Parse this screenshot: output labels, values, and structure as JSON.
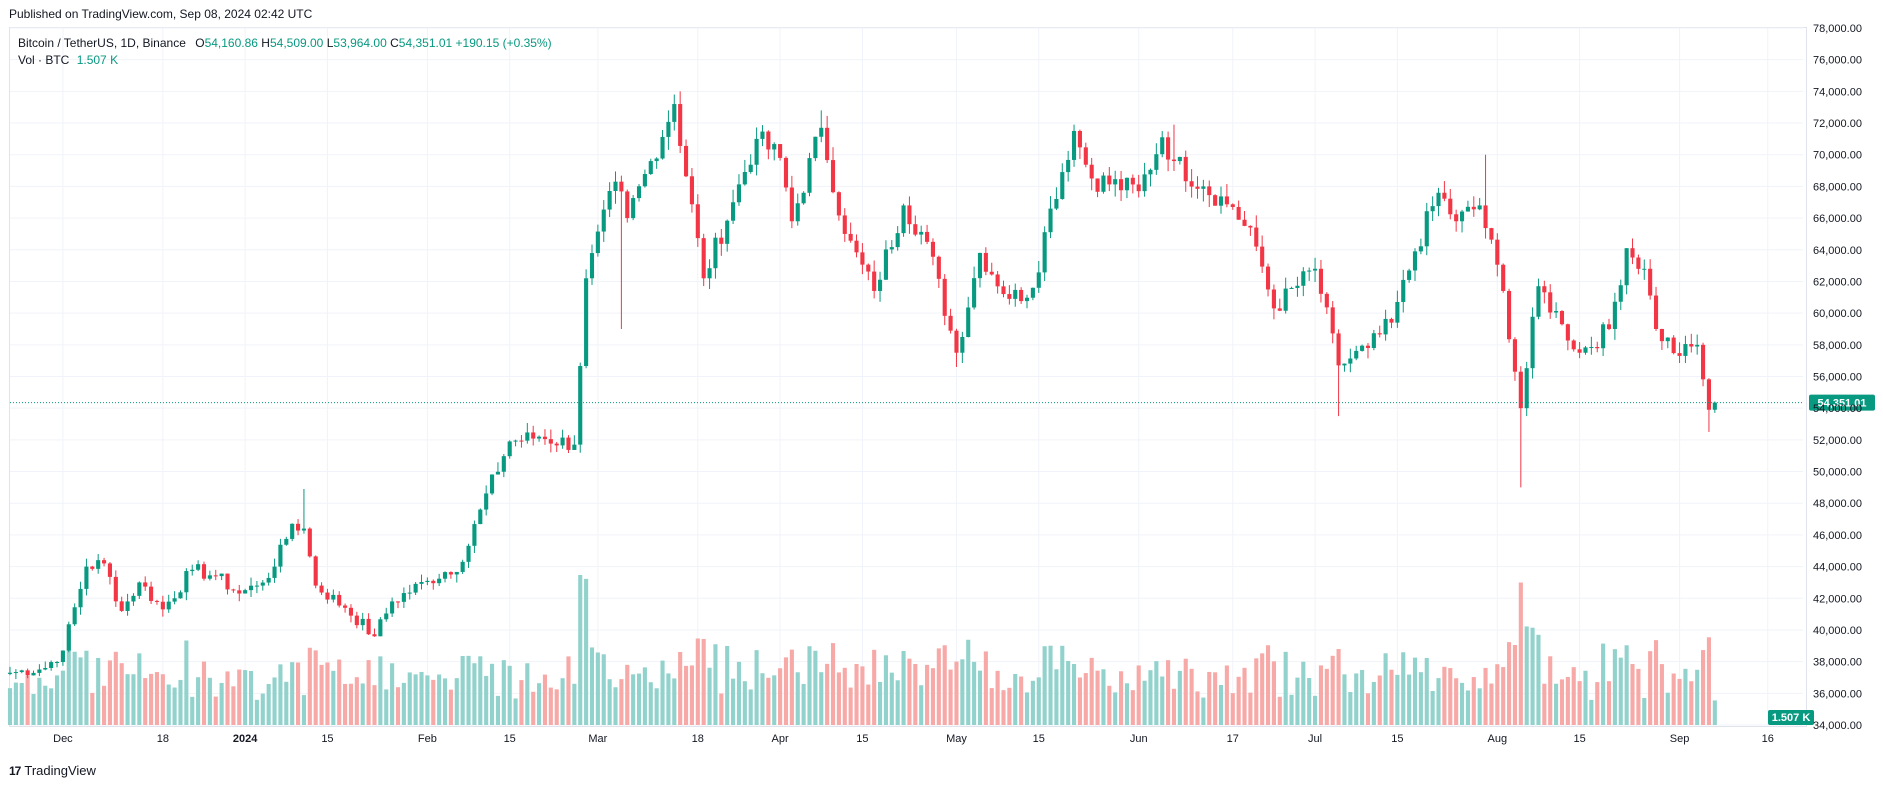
{
  "header": {
    "published": "Published on TradingView.com, Sep 08, 2024 02:42 UTC"
  },
  "legend": {
    "symbol": "Bitcoin / TetherUS, 1D, Binance",
    "o_label": "O",
    "o_value": "54,160.86",
    "h_label": "H",
    "h_value": "54,509.00",
    "l_label": "L",
    "l_value": "53,964.00",
    "c_label": "C",
    "c_value": "54,351.01",
    "change": "+190.15 (+0.35%)",
    "vol_label": "Vol · BTC",
    "vol_value": "1.507 K"
  },
  "brand": {
    "logo": "17",
    "name": "TradingView"
  },
  "colors": {
    "up": "#089981",
    "down": "#f23645",
    "up_vol": "#92d2cc",
    "down_vol": "#f7a9a7",
    "grid": "#f0f3fa",
    "axis_text": "#131722"
  },
  "chart_data": {
    "type": "candlestick",
    "symbol": "Bitcoin / TetherUS, 1D, Binance",
    "x_range": [
      "2023-11-22",
      "2024-09-22"
    ],
    "ylim": [
      34000,
      78000
    ],
    "yticks": [
      34000,
      36000,
      38000,
      40000,
      42000,
      44000,
      46000,
      48000,
      50000,
      52000,
      54000,
      56000,
      58000,
      60000,
      62000,
      64000,
      66000,
      68000,
      70000,
      72000,
      74000,
      76000,
      78000
    ],
    "ytick_labels": [
      "34,000.00",
      "36,000.00",
      "38,000.00",
      "40,000.00",
      "42,000.00",
      "44,000.00",
      "46,000.00",
      "48,000.00",
      "50,000.00",
      "52,000.00",
      "54,000.00",
      "56,000.00",
      "58,000.00",
      "60,000.00",
      "62,000.00",
      "64,000.00",
      "66,000.00",
      "68,000.00",
      "70,000.00",
      "72,000.00",
      "74,000.00",
      "76,000.00",
      "78,000.00"
    ],
    "xticks": [
      {
        "date": "2023-12-01",
        "label": "Dec",
        "bold": false
      },
      {
        "date": "2023-12-18",
        "label": "18",
        "bold": false
      },
      {
        "date": "2024-01-01",
        "label": "2024",
        "bold": true
      },
      {
        "date": "2024-01-15",
        "label": "15",
        "bold": false
      },
      {
        "date": "2024-02-01",
        "label": "Feb",
        "bold": false
      },
      {
        "date": "2024-02-15",
        "label": "15",
        "bold": false
      },
      {
        "date": "2024-03-01",
        "label": "Mar",
        "bold": false
      },
      {
        "date": "2024-03-18",
        "label": "18",
        "bold": false
      },
      {
        "date": "2024-04-01",
        "label": "Apr",
        "bold": false
      },
      {
        "date": "2024-04-15",
        "label": "15",
        "bold": false
      },
      {
        "date": "2024-05-01",
        "label": "May",
        "bold": false
      },
      {
        "date": "2024-05-15",
        "label": "15",
        "bold": false
      },
      {
        "date": "2024-06-01",
        "label": "Jun",
        "bold": false
      },
      {
        "date": "2024-06-17",
        "label": "17",
        "bold": false
      },
      {
        "date": "2024-07-01",
        "label": "Jul",
        "bold": false
      },
      {
        "date": "2024-07-15",
        "label": "15",
        "bold": false
      },
      {
        "date": "2024-08-01",
        "label": "Aug",
        "bold": false
      },
      {
        "date": "2024-08-15",
        "label": "15",
        "bold": false
      },
      {
        "date": "2024-09-01",
        "label": "Sep",
        "bold": false
      },
      {
        "date": "2024-09-16",
        "label": "16",
        "bold": false
      }
    ],
    "last_price": 54351.01,
    "last_price_label": "54,351.01",
    "last_volume_label": "1.507 K",
    "vol_max": 9200,
    "keypoints": [
      [
        "2023-11-22",
        37300
      ],
      [
        "2023-11-28",
        37600
      ],
      [
        "2023-12-01",
        38700
      ],
      [
        "2023-12-05",
        44000
      ],
      [
        "2023-12-08",
        44200
      ],
      [
        "2023-12-11",
        41200
      ],
      [
        "2023-12-14",
        43000
      ],
      [
        "2023-12-18",
        41300
      ],
      [
        "2023-12-23",
        43800
      ],
      [
        "2023-12-27",
        43400
      ],
      [
        "2023-12-31",
        42300
      ],
      [
        "2024-01-03",
        42800
      ],
      [
        "2024-01-06",
        44000
      ],
      [
        "2024-01-09",
        46700
      ],
      [
        "2024-01-11",
        46400
      ],
      [
        "2024-01-13",
        42800
      ],
      [
        "2024-01-18",
        41400
      ],
      [
        "2024-01-23",
        39600
      ],
      [
        "2024-01-26",
        41800
      ],
      [
        "2024-02-01",
        43100
      ],
      [
        "2024-02-07",
        44300
      ],
      [
        "2024-02-10",
        47600
      ],
      [
        "2024-02-15",
        51900
      ],
      [
        "2024-02-20",
        52200
      ],
      [
        "2024-02-26",
        51700
      ],
      [
        "2024-02-28",
        62200
      ],
      [
        "2024-03-04",
        68300
      ],
      [
        "2024-03-06",
        66000
      ],
      [
        "2024-03-10",
        69600
      ],
      [
        "2024-03-14",
        73200
      ],
      [
        "2024-03-19",
        62200
      ],
      [
        "2024-03-24",
        67000
      ],
      [
        "2024-03-28",
        71000
      ],
      [
        "2024-04-01",
        69800
      ],
      [
        "2024-04-03",
        65800
      ],
      [
        "2024-04-08",
        71700
      ],
      [
        "2024-04-12",
        65000
      ],
      [
        "2024-04-17",
        61400
      ],
      [
        "2024-04-22",
        66800
      ],
      [
        "2024-04-26",
        64500
      ],
      [
        "2024-05-01",
        57500
      ],
      [
        "2024-05-05",
        63800
      ],
      [
        "2024-05-10",
        60900
      ],
      [
        "2024-05-14",
        61600
      ],
      [
        "2024-05-17",
        66600
      ],
      [
        "2024-05-21",
        71500
      ],
      [
        "2024-05-24",
        68500
      ],
      [
        "2024-06-01",
        67700
      ],
      [
        "2024-06-05",
        71100
      ],
      [
        "2024-06-07",
        69600
      ],
      [
        "2024-06-12",
        68000
      ],
      [
        "2024-06-17",
        66700
      ],
      [
        "2024-06-21",
        64200
      ],
      [
        "2024-06-24",
        60300
      ],
      [
        "2024-07-01",
        62800
      ],
      [
        "2024-07-05",
        56700
      ],
      [
        "2024-07-10",
        57800
      ],
      [
        "2024-07-14",
        59400
      ],
      [
        "2024-07-18",
        63900
      ],
      [
        "2024-07-22",
        67600
      ],
      [
        "2024-07-25",
        65800
      ],
      [
        "2024-07-29",
        66800
      ],
      [
        "2024-08-02",
        61400
      ],
      [
        "2024-08-05",
        54000
      ],
      [
        "2024-08-08",
        61700
      ],
      [
        "2024-08-12",
        59300
      ],
      [
        "2024-08-15",
        57500
      ],
      [
        "2024-08-20",
        59000
      ],
      [
        "2024-08-23",
        64100
      ],
      [
        "2024-08-26",
        62800
      ],
      [
        "2024-08-28",
        59000
      ],
      [
        "2024-09-01",
        57300
      ],
      [
        "2024-09-04",
        58000
      ],
      [
        "2024-09-06",
        53900
      ],
      [
        "2024-09-07",
        54351
      ]
    ],
    "extremes": [
      {
        "date": "2024-03-14",
        "high": 73800
      },
      {
        "date": "2024-08-05",
        "low": 49000
      },
      {
        "date": "2024-07-30",
        "high": 70000
      },
      {
        "date": "2024-06-07",
        "high": 71900
      },
      {
        "date": "2024-05-21",
        "high": 71900
      },
      {
        "date": "2024-04-08",
        "high": 72800
      },
      {
        "date": "2024-01-11",
        "high": 48900
      },
      {
        "date": "2024-09-06",
        "low": 52500
      },
      {
        "date": "2024-07-05",
        "low": 53500
      },
      {
        "date": "2024-05-01",
        "low": 56600
      },
      {
        "date": "2024-03-05",
        "low": 59000
      }
    ]
  }
}
